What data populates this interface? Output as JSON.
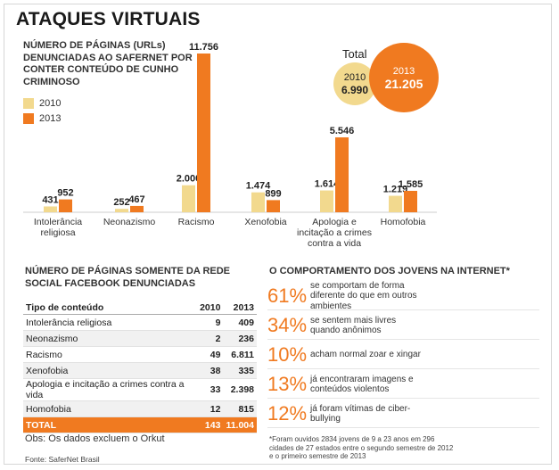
{
  "title": "ATAQUES VIRTUAIS",
  "subtitle": "NÚMERO DE PÁGINAS (URLs) DENUNCIADAS AO SAFERNET POR CONTER CONTEÚDO DE CUNHO CRIMINOSO",
  "colors": {
    "y2010": "#f2d98e",
    "y2013": "#f07a20"
  },
  "legend": {
    "y2010": "2010",
    "y2013": "2013"
  },
  "totals": {
    "label": "Total",
    "y2010": "2010",
    "v2010": "6.990",
    "y2013": "2013",
    "v2013": "21.205"
  },
  "chart_data": {
    "type": "bar",
    "title": "NÚMERO DE PÁGINAS (URLs) DENUNCIADAS AO SAFERNET POR CONTER CONTEÚDO DE CUNHO CRIMINOSO",
    "categories": [
      "Intolerância religiosa",
      "Neonazismo",
      "Racismo",
      "Xenofobia",
      "Apologia e incitação a crimes contra a vida",
      "Homofobia"
    ],
    "category_lines": [
      [
        "Intolerância",
        "religiosa"
      ],
      [
        "Neonazismo"
      ],
      [
        "Racismo"
      ],
      [
        "Xenofobia"
      ],
      [
        "Apologia e",
        "incitação a crimes",
        "contra a vida"
      ],
      [
        "Homofobia"
      ]
    ],
    "series": [
      {
        "name": "2010",
        "values": [
          431,
          252,
          2000,
          1474,
          1614,
          1219
        ],
        "labels": [
          "431",
          "252",
          "2.000",
          "1.474",
          "1.614",
          "1.219"
        ]
      },
      {
        "name": "2013",
        "values": [
          952,
          467,
          11756,
          899,
          5546,
          1585
        ],
        "labels": [
          "952",
          "467",
          "11.756",
          "899",
          "5.546",
          "1.585"
        ]
      }
    ],
    "ylim": [
      0,
      11756
    ],
    "xlabel": "",
    "ylabel": ""
  },
  "table": {
    "title": "NÚMERO DE PÁGINAS SOMENTE DA REDE SOCIAL FACEBOOK DENUNCIADAS",
    "headers": [
      "Tipo de conteúdo",
      "2010",
      "2013"
    ],
    "rows": [
      [
        "Intolerância religiosa",
        "9",
        "409"
      ],
      [
        "Neonazismo",
        "2",
        "236"
      ],
      [
        "Racismo",
        "49",
        "6.811"
      ],
      [
        "Xenofobia",
        "38",
        "335"
      ],
      [
        "Apologia e incitação a crimes contra a vida",
        "33",
        "2.398"
      ],
      [
        "Homofobia",
        "12",
        "815"
      ]
    ],
    "total": [
      "TOTAL",
      "143",
      "11.004"
    ]
  },
  "obs": "Obs: Os dados excluem o Orkut",
  "source": "Fonte: SaferNet Brasil",
  "behavior": {
    "title": "O COMPORTAMENTO DOS JOVENS NA INTERNET*",
    "items": [
      {
        "pct": "61%",
        "text": "se comportam de forma diferente do que em outros ambientes"
      },
      {
        "pct": "34%",
        "text": "se sentem mais livres quando anônimos"
      },
      {
        "pct": "10%",
        "text": "acham normal zoar e xingar"
      },
      {
        "pct": "13%",
        "text": "já encontraram imagens e conteúdos violentos"
      },
      {
        "pct": "12%",
        "text": "já foram vítimas de ciber-bullying"
      }
    ],
    "footnote": "*Foram ouvidos 2834 jovens de 9 a 23 anos em 296 cidades de 27 estados entre o segundo semestre de 2012 e o primeiro semestre de 2013"
  }
}
